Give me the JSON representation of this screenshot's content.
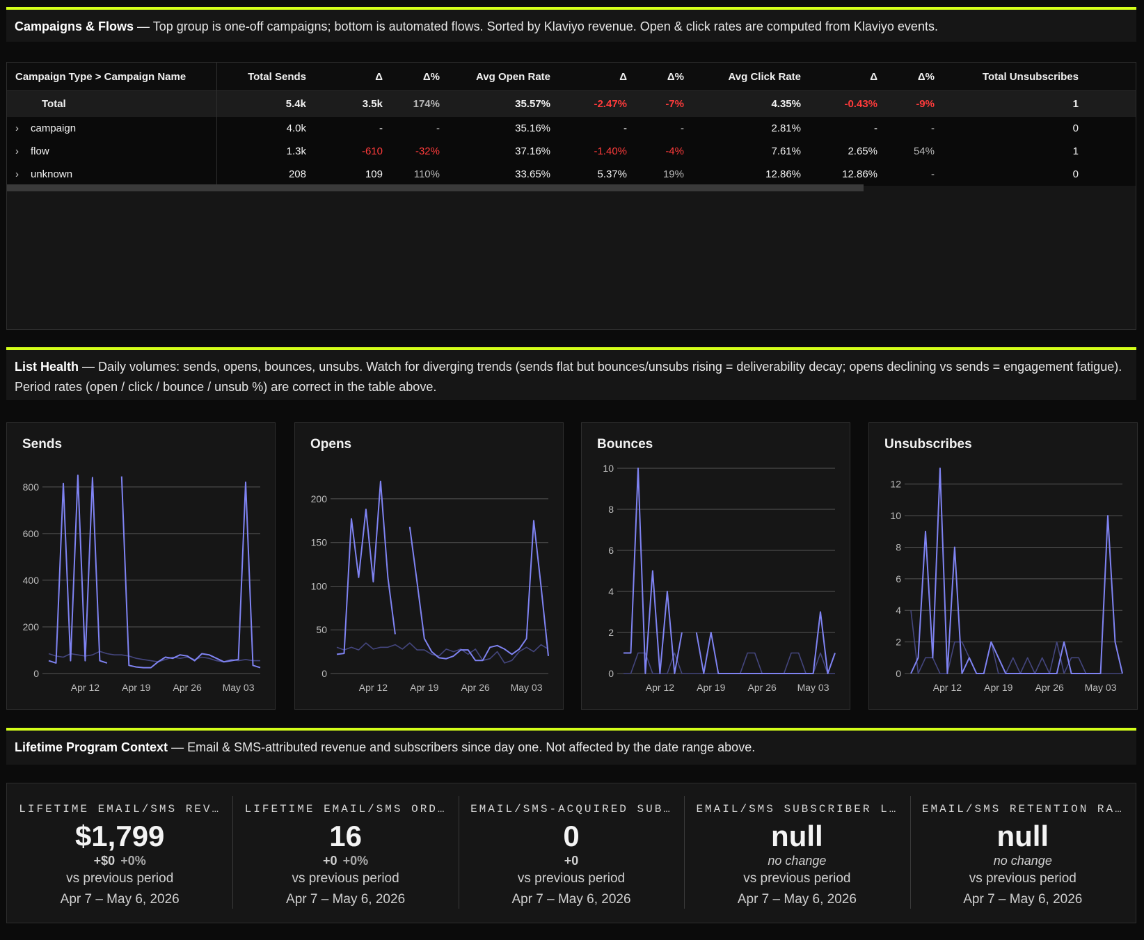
{
  "sections": [
    {
      "title": "Campaigns & Flows",
      "description": "— Top group is one-off campaigns; bottom is automated flows. Sorted by Klaviyo revenue. Open & click rates are computed from Klaviyo events."
    },
    {
      "title": "List Health",
      "description": "— Daily volumes: sends, opens, bounces, unsubs. Watch for diverging trends (sends flat but bounces/unsubs rising = deliverability decay; opens declining vs sends = engagement fatigue). Period rates (open / click / bounce / unsub %) are correct in the table above."
    },
    {
      "title": "Lifetime Program Context",
      "description": "— Email & SMS-attributed revenue and subscribers since day one. Not affected by the date range above."
    }
  ],
  "table": {
    "columns": [
      "Campaign Type > Campaign Name",
      "Total Sends",
      "Δ",
      "Δ%",
      "Avg Open Rate",
      "Δ",
      "Δ%",
      "Avg Click Rate",
      "Δ",
      "Δ%",
      "Total Unsubscribes"
    ],
    "rows": [
      [
        "Total",
        "5.4k",
        "3.5k",
        "174%",
        "35.57%",
        "-2.47%",
        "-7%",
        "4.35%",
        "-0.43%",
        "-9%",
        "1"
      ],
      [
        "campaign",
        "4.0k",
        "-",
        "-",
        "35.16%",
        "-",
        "-",
        "2.81%",
        "-",
        "-",
        "0"
      ],
      [
        "flow",
        "1.3k",
        "-610",
        "-32%",
        "37.16%",
        "-1.40%",
        "-4%",
        "7.61%",
        "2.65%",
        "54%",
        "1"
      ],
      [
        "unknown",
        "208",
        "109",
        "110%",
        "33.65%",
        "5.37%",
        "19%",
        "12.86%",
        "12.86%",
        "-",
        "0"
      ]
    ]
  },
  "chart_data": [
    {
      "type": "line",
      "title": "Sends",
      "categories": [
        null,
        null,
        null,
        null,
        null,
        "Apr 12",
        null,
        null,
        null,
        null,
        null,
        null,
        "Apr 19",
        null,
        null,
        null,
        null,
        null,
        null,
        "Apr 26",
        null,
        null,
        null,
        null,
        null,
        null,
        "May 03",
        null,
        null,
        null
      ],
      "series": [
        {
          "color": "#7f83f2",
          "values": [
            55,
            45,
            815,
            55,
            850,
            55,
            840,
            55,
            45,
            null,
            845,
            35,
            28,
            25,
            25,
            50,
            70,
            65,
            80,
            75,
            55,
            85,
            80,
            65,
            50,
            55,
            60,
            820,
            35,
            25
          ]
        },
        {
          "color": "#44467e",
          "values": [
            85,
            75,
            70,
            85,
            80,
            75,
            80,
            95,
            85,
            80,
            80,
            75,
            65,
            60,
            55,
            50,
            60,
            70,
            65,
            70,
            60,
            70,
            65,
            55,
            50,
            60,
            55,
            60,
            55,
            55
          ]
        }
      ],
      "ylim": [
        0,
        880
      ],
      "yticks": [
        0,
        200,
        400,
        600,
        800
      ],
      "grid": true
    },
    {
      "type": "line",
      "title": "Opens",
      "categories": [
        null,
        null,
        null,
        null,
        null,
        "Apr 12",
        null,
        null,
        null,
        null,
        null,
        null,
        "Apr 19",
        null,
        null,
        null,
        null,
        null,
        null,
        "Apr 26",
        null,
        null,
        null,
        null,
        null,
        null,
        "May 03",
        null,
        null,
        null
      ],
      "series": [
        {
          "color": "#7f83f2",
          "values": [
            22,
            23,
            177,
            110,
            188,
            105,
            220,
            110,
            45,
            null,
            168,
            105,
            40,
            25,
            18,
            17,
            20,
            27,
            27,
            15,
            15,
            30,
            32,
            28,
            22,
            28,
            40,
            175,
            100,
            20
          ]
        },
        {
          "color": "#44467e",
          "values": [
            30,
            27,
            30,
            27,
            35,
            28,
            30,
            30,
            33,
            28,
            35,
            27,
            27,
            22,
            20,
            28,
            25,
            28,
            22,
            28,
            15,
            17,
            25,
            12,
            15,
            25,
            30,
            25,
            33,
            28
          ]
        }
      ],
      "ylim": [
        0,
        235
      ],
      "yticks": [
        0,
        50,
        100,
        150,
        200
      ],
      "grid": true
    },
    {
      "type": "line",
      "title": "Bounces",
      "categories": [
        null,
        null,
        null,
        null,
        null,
        "Apr 12",
        null,
        null,
        null,
        null,
        null,
        null,
        "Apr 19",
        null,
        null,
        null,
        null,
        null,
        null,
        "Apr 26",
        null,
        null,
        null,
        null,
        null,
        null,
        "May 03",
        null,
        null,
        null
      ],
      "series": [
        {
          "color": "#7f83f2",
          "values": [
            1,
            1,
            10,
            0,
            5,
            0,
            4,
            0,
            2,
            null,
            2,
            0,
            2,
            0,
            0,
            0,
            0,
            0,
            0,
            0,
            0,
            0,
            0,
            0,
            0,
            0,
            0,
            3,
            0,
            1
          ]
        },
        {
          "color": "#44467e",
          "values": [
            0,
            0,
            1,
            1,
            0,
            0,
            0,
            1,
            0,
            0,
            0,
            0,
            0,
            0,
            0,
            0,
            0,
            1,
            1,
            0,
            0,
            0,
            0,
            1,
            1,
            0,
            0,
            1,
            0,
            0
          ]
        }
      ],
      "ylim": [
        0,
        10
      ],
      "yticks": [
        0,
        2,
        4,
        6,
        8,
        10
      ],
      "grid": true
    },
    {
      "type": "line",
      "title": "Unsubscribes",
      "categories": [
        null,
        null,
        null,
        null,
        null,
        "Apr 12",
        null,
        null,
        null,
        null,
        null,
        null,
        "Apr 19",
        null,
        null,
        null,
        null,
        null,
        null,
        "Apr 26",
        null,
        null,
        null,
        null,
        null,
        null,
        "May 03",
        null,
        null,
        null
      ],
      "series": [
        {
          "color": "#7f83f2",
          "values": [
            0,
            1,
            9,
            1,
            13,
            0,
            8,
            0,
            1,
            0,
            0,
            2,
            1,
            0,
            0,
            0,
            0,
            0,
            0,
            0,
            0,
            2,
            0,
            0,
            0,
            0,
            0,
            10,
            2,
            0
          ]
        },
        {
          "color": "#44467e",
          "values": [
            4,
            0,
            1,
            1,
            0,
            0,
            2,
            2,
            1,
            0,
            0,
            2,
            0,
            0,
            1,
            0,
            1,
            0,
            1,
            0,
            2,
            0,
            1,
            1,
            0,
            0,
            0,
            0,
            0,
            0
          ]
        }
      ],
      "ylim": [
        0,
        13
      ],
      "yticks": [
        0,
        2,
        4,
        6,
        8,
        10,
        12
      ],
      "grid": true
    }
  ],
  "kpis": [
    {
      "label": "LIFETIME EMAIL/SMS REV…",
      "value": "$1,799",
      "deltas": [
        "+$0",
        "+0%"
      ],
      "compare": "vs previous period",
      "range": "Apr 7 – May 6, 2026"
    },
    {
      "label": "LIFETIME EMAIL/SMS ORD…",
      "value": "16",
      "deltas": [
        "+0",
        "+0%"
      ],
      "compare": "vs previous period",
      "range": "Apr 7 – May 6, 2026"
    },
    {
      "label": "EMAIL/SMS-ACQUIRED SUB…",
      "value": "0",
      "deltas": [
        "+0"
      ],
      "compare": "vs previous period",
      "range": "Apr 7 – May 6, 2026"
    },
    {
      "label": "EMAIL/SMS SUBSCRIBER L…",
      "value": "null",
      "note": "no change",
      "compare": "vs previous period",
      "range": "Apr 7 – May 6, 2026"
    },
    {
      "label": "EMAIL/SMS RETENTION RA…",
      "value": "null",
      "note": "no change",
      "compare": "vs previous period",
      "range": "Apr 7 – May 6, 2026"
    }
  ]
}
